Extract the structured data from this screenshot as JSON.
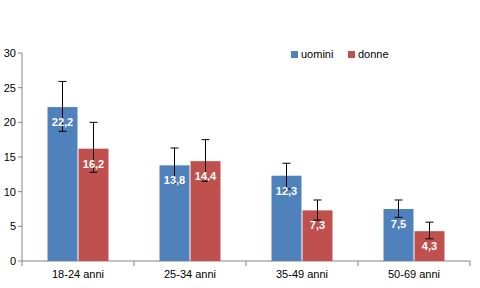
{
  "chart_data": {
    "type": "bar",
    "categories": [
      "18-24 anni",
      "25-34 anni",
      "35-49 anni",
      "50-69 anni"
    ],
    "series": [
      {
        "name": "uomini",
        "color": "#4f81bd",
        "values": [
          22.2,
          13.8,
          12.3,
          7.5
        ],
        "value_labels": [
          "22,2",
          "13,8",
          "12,3",
          "7,5"
        ],
        "error_minus": [
          3.5,
          2.6,
          1.9,
          1.2
        ],
        "error_plus": [
          3.7,
          2.5,
          1.8,
          1.3
        ]
      },
      {
        "name": "donne",
        "color": "#c0504d",
        "values": [
          16.2,
          14.4,
          7.3,
          4.3
        ],
        "value_labels": [
          "16,2",
          "14,4",
          "7,3",
          "4,3"
        ],
        "error_minus": [
          3.4,
          2.9,
          1.4,
          1.1
        ],
        "error_plus": [
          3.8,
          3.1,
          1.5,
          1.3
        ]
      }
    ],
    "ylim": [
      0,
      30
    ],
    "yticks": [
      0,
      5,
      10,
      15,
      20,
      25,
      30
    ],
    "grid": false,
    "legend": "top-right",
    "data_labels": true
  }
}
